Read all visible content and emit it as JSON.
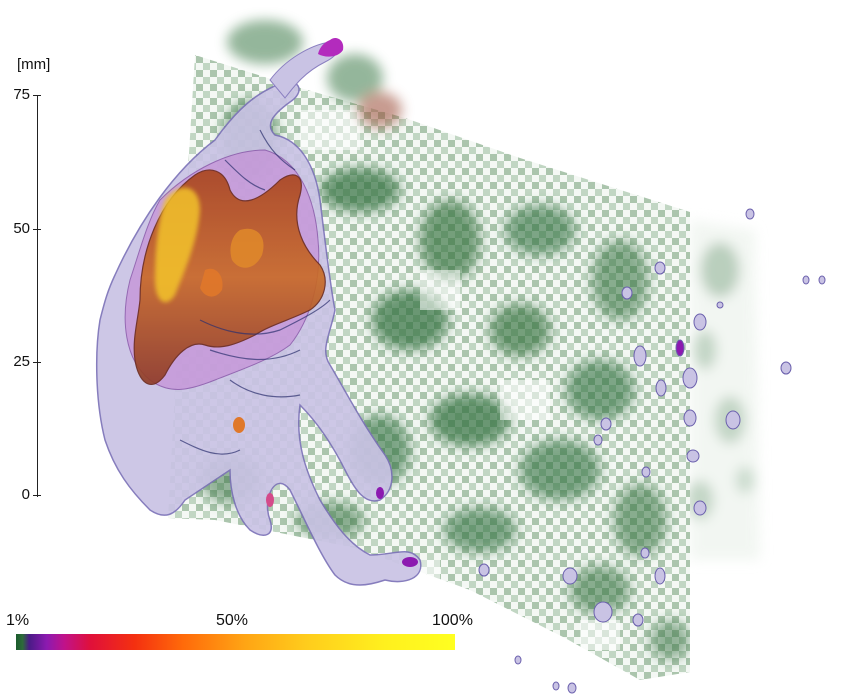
{
  "axis": {
    "unit": "[mm]",
    "ticks": [
      {
        "value": 75,
        "label": "75"
      },
      {
        "value": 50,
        "label": "50"
      },
      {
        "value": 25,
        "label": "25"
      },
      {
        "value": 0,
        "label": "0"
      }
    ]
  },
  "colorbar": {
    "min_label": "1%",
    "mid_label": "50%",
    "max_label": "100%"
  },
  "colors": {
    "slice_green": "#2f6e3c",
    "isosurface_lavender": "#c9c3e4",
    "isosurface_magenta": "#b02eb8",
    "isosurface_orange": "#c65a1c",
    "isosurface_yellow": "#f2c22b"
  }
}
